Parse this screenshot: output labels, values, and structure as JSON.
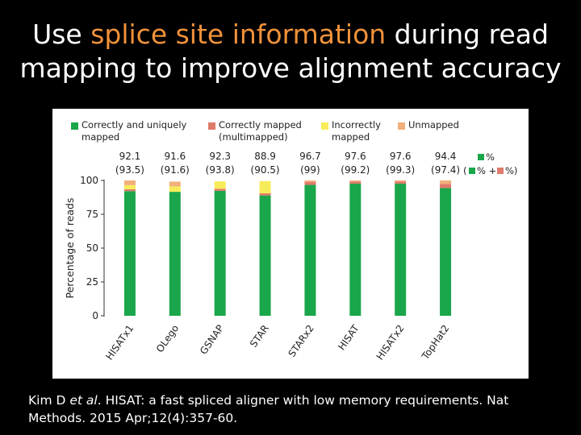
{
  "slide": {
    "title_line1_a": "Use ",
    "title_line1_hl": "splice site information",
    "title_line1_b": " during read",
    "title_line2": "mapping to improve alignment accuracy",
    "accent": "#f0923a",
    "citation_a": "Kim D ",
    "citation_em": "et al",
    "citation_b": ". HISAT: a fast spliced aligner with low memory requirements. Nat Methods. 2015 Apr;12(4):357-60."
  },
  "chart_data": {
    "type": "bar",
    "stacked": true,
    "ylabel": "Percentage of reads",
    "ylim": [
      0,
      100
    ],
    "yticks": [
      0,
      25,
      50,
      75,
      100
    ],
    "categories": [
      "HISATx1",
      "OLego",
      "GSNAP",
      "STAR",
      "STARx2",
      "HISAT",
      "HISATx2",
      "TopHat2"
    ],
    "series": [
      {
        "name": "Correctly and uniquely mapped",
        "color": "#1aa64a",
        "values": [
          92.1,
          91.6,
          92.3,
          88.9,
          96.7,
          97.6,
          97.6,
          94.4
        ]
      },
      {
        "name": "Correctly mapped (multimapped)",
        "color": "#e07a6a",
        "values": [
          1.4,
          0.0,
          1.5,
          1.6,
          2.3,
          1.6,
          1.7,
          3.0
        ]
      },
      {
        "name": "Incorrectly mapped",
        "color": "#f6ec5a",
        "values": [
          3.0,
          4.0,
          5.5,
          9.0,
          0.0,
          0.0,
          0.0,
          0.0
        ]
      },
      {
        "name": "Unmapped",
        "color": "#f2b07a",
        "values": [
          3.5,
          3.5,
          0.0,
          0.0,
          1.0,
          0.8,
          0.7,
          2.6
        ]
      }
    ],
    "top_labels": [
      "92.1",
      "91.6",
      "92.3",
      "88.9",
      "96.7",
      "97.6",
      "97.6",
      "94.4"
    ],
    "bottom_labels": [
      "(93.5)",
      "(91.6)",
      "(93.8)",
      "(90.5)",
      "(99)",
      "(99.2)",
      "(99.3)",
      "(97.4)"
    ],
    "legend_placement": "top",
    "legend_line1": [
      "Correctly and uniquely",
      "Correctly mapped",
      "Incorrectly",
      "Unmapped"
    ],
    "legend_line2": [
      "mapped",
      "(multimapped)",
      "mapped",
      ""
    ],
    "key_pct": "%",
    "key_open": "(",
    "key_plus": "% +",
    "key_close": "%)"
  }
}
